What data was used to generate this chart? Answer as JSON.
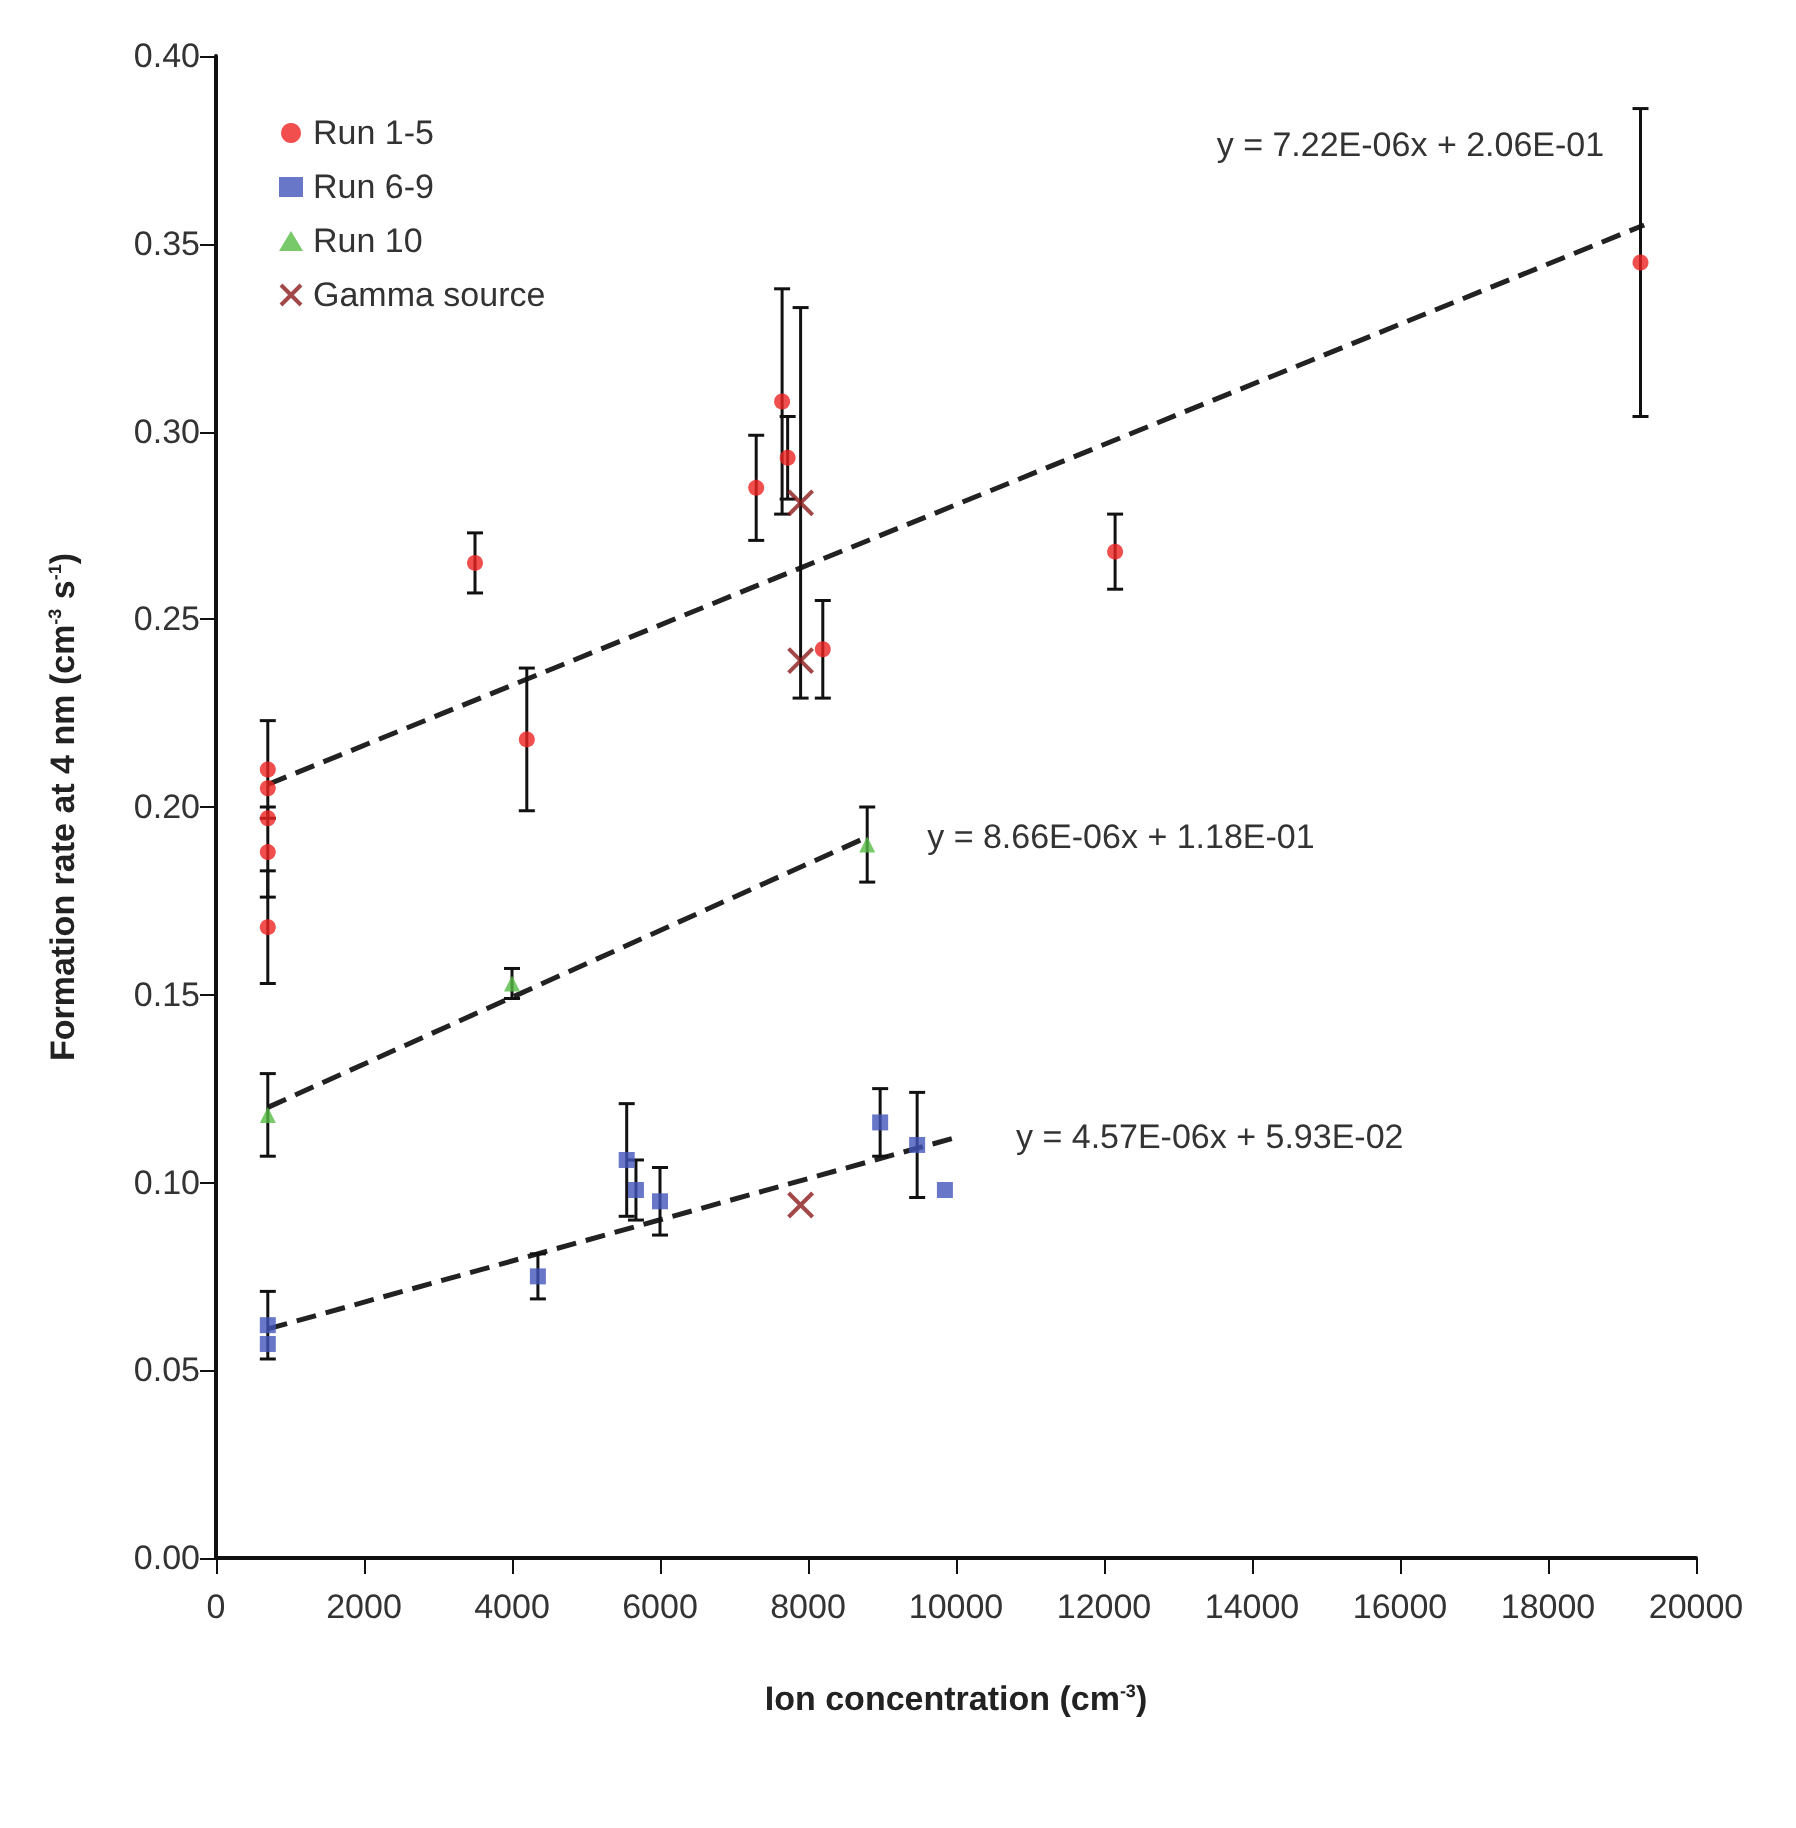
{
  "chart_data": {
    "type": "scatter",
    "xlabel": "Ion concentration (cm$^{-3}$)",
    "ylabel": "Formation rate at 4 nm (cm$^{-3}$ s$^{-1}$)",
    "xlim": [
      0,
      20000
    ],
    "xticks": [
      0,
      2000,
      4000,
      6000,
      8000,
      10000,
      12000,
      14000,
      16000,
      18000,
      20000
    ],
    "ylim": [
      0,
      0.4
    ],
    "yticks": [
      {
        "value": 0,
        "label": "0.00"
      },
      {
        "value": 0.05,
        "label": "0.05"
      },
      {
        "value": 0.1,
        "label": "0.10"
      },
      {
        "value": 0.15,
        "label": "0.15"
      },
      {
        "value": 0.2,
        "label": "0.20"
      },
      {
        "value": 0.25,
        "label": "0.25"
      },
      {
        "value": 0.3,
        "label": "0.30"
      },
      {
        "value": 0.35,
        "label": "0.35"
      },
      {
        "value": 0.4,
        "label": "0.40"
      }
    ],
    "grid": false,
    "legend": "top left",
    "series": [
      {
        "name": "Run 1-5",
        "color": "#ee2222",
        "marker": "circle",
        "x": [
          700,
          700,
          700,
          700,
          700,
          3500,
          4200,
          7300,
          7650,
          7725,
          8200,
          12150,
          19250
        ],
        "values": [
          0.21,
          0.205,
          0.197,
          0.188,
          0.168,
          0.265,
          0.218,
          0.285,
          0.308,
          0.293,
          0.242,
          0.268,
          0.345
        ],
        "errors": [
          0.013,
          null,
          null,
          0.012,
          0.015,
          0.008,
          0.019,
          0.014,
          0.03,
          0.011,
          0.013,
          0.01,
          0.041
        ]
      },
      {
        "name": "Run 6-9",
        "color": "#4455bb",
        "marker": "square",
        "x": [
          700,
          700,
          4350,
          5550,
          5675,
          6000,
          8975,
          9475,
          9850
        ],
        "values": [
          0.062,
          0.057,
          0.075,
          0.106,
          0.098,
          0.095,
          0.116,
          0.11,
          0.098
        ],
        "errors": [
          0.009,
          null,
          0.006,
          0.015,
          0.008,
          0.009,
          0.009,
          0.014,
          null
        ]
      },
      {
        "name": "Run 10",
        "color": "#55bb44",
        "marker": "triangle",
        "x": [
          700,
          4000,
          8800
        ],
        "values": [
          0.118,
          0.153,
          0.19
        ],
        "errors": [
          0.011,
          0.004,
          0.01
        ]
      },
      {
        "name": "Gamma source",
        "color": "#8b1a1a",
        "marker": "cross",
        "x": [
          7900,
          7900,
          7900
        ],
        "values": [
          0.281,
          0.239,
          0.094
        ],
        "errors": [
          [
            0.229,
            0.333
          ],
          null,
          null
        ]
      },
      {
        "type": "line",
        "color": "#222222",
        "line_style": "dashed",
        "marker": "none",
        "x": [
          700,
          19300
        ],
        "values": [
          0.206,
          0.355
        ]
      },
      {
        "type": "line",
        "color": "#222222",
        "line_style": "dashed",
        "marker": "none",
        "x": [
          700,
          8800
        ],
        "values": [
          0.12,
          0.192
        ]
      },
      {
        "type": "line",
        "color": "#222222",
        "line_style": "dashed",
        "marker": "none",
        "x": [
          700,
          10000
        ],
        "values": [
          0.061,
          0.112
        ]
      }
    ],
    "annotations": [
      "y = 7.22E-06x + 2.06E-01",
      "y = 8.66E-06x + 1.18E-01",
      "y = 4.57E-06x + 5.93E-02"
    ]
  }
}
